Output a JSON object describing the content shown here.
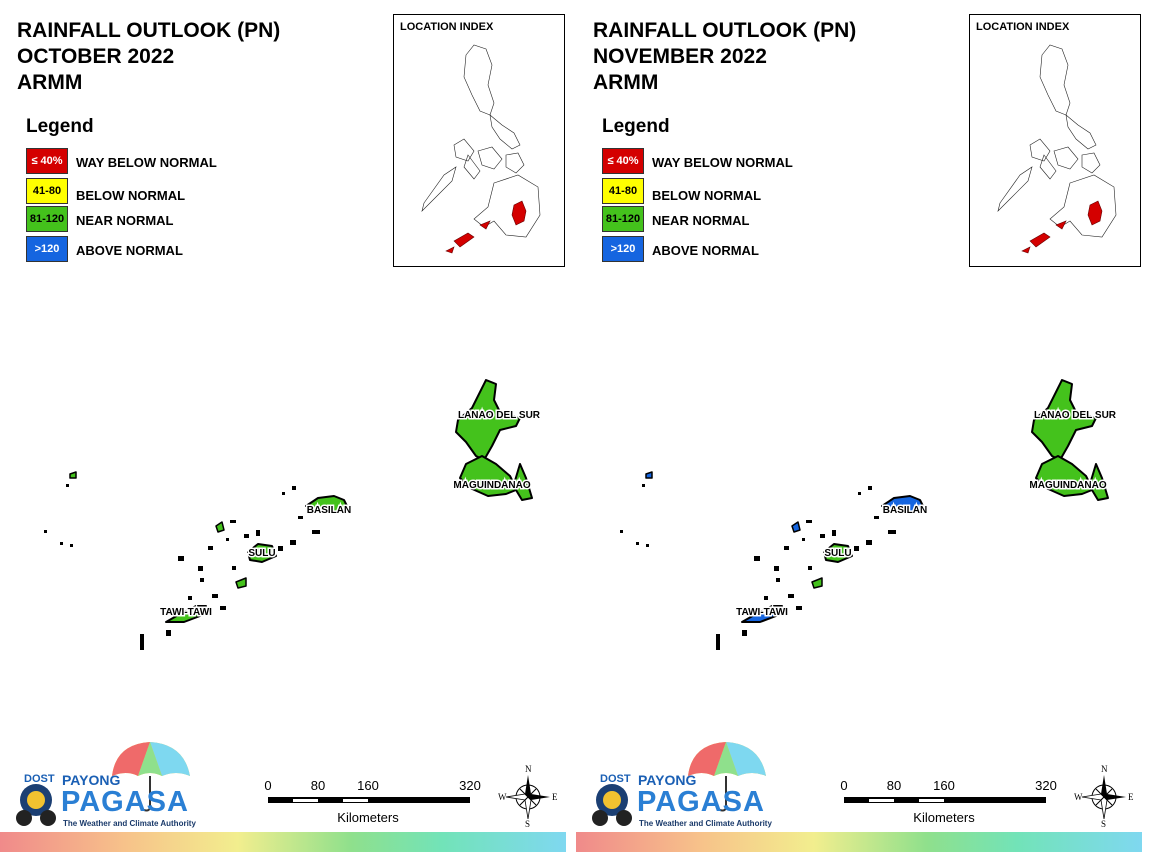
{
  "panels": [
    {
      "title_line1": "RAINFALL OUTLOOK (PN)",
      "title_line2": "OCTOBER 2022",
      "title_line3": "ARMM",
      "legend_title": "Legend",
      "legend": [
        {
          "swatch": "≤ 40%",
          "label": "WAY BELOW NORMAL",
          "color": "#d40000",
          "text_color": "#ffffff"
        },
        {
          "swatch": "41-80",
          "label": "BELOW NORMAL",
          "color": "#ffff00",
          "text_color": "#000000"
        },
        {
          "swatch": "81-120",
          "label": "NEAR NORMAL",
          "color": "#44c21c",
          "text_color": "#000000"
        },
        {
          "swatch": ">120",
          "label": "ABOVE NORMAL",
          "color": "#1565e0",
          "text_color": "#ffffff"
        }
      ],
      "index_title": "LOCATION INDEX",
      "regions": [
        {
          "name": "LANAO DEL SUR",
          "category": "81-120"
        },
        {
          "name": "MAGUINDANAO",
          "category": "81-120"
        },
        {
          "name": "BASILAN",
          "category": "81-120"
        },
        {
          "name": "SULU",
          "category": "81-120"
        },
        {
          "name": "TAWI-TAWI",
          "category": "81-120"
        }
      ],
      "scale": {
        "ticks": [
          "0",
          "80",
          "160",
          "320"
        ],
        "units": "Kilometers"
      },
      "compass": {
        "n": "N",
        "s": "S",
        "e": "E",
        "w": "W"
      },
      "logo": {
        "dost": "DOST",
        "payong": "PAYONG",
        "pagasa": "PAGASA",
        "tagline": "The Weather and Climate Authority"
      }
    },
    {
      "title_line1": "RAINFALL OUTLOOK (PN)",
      "title_line2": "NOVEMBER 2022",
      "title_line3": "ARMM",
      "legend_title": "Legend",
      "legend": [
        {
          "swatch": "≤ 40%",
          "label": "WAY BELOW NORMAL",
          "color": "#d40000",
          "text_color": "#ffffff"
        },
        {
          "swatch": "41-80",
          "label": "BELOW NORMAL",
          "color": "#ffff00",
          "text_color": "#000000"
        },
        {
          "swatch": "81-120",
          "label": "NEAR NORMAL",
          "color": "#44c21c",
          "text_color": "#000000"
        },
        {
          "swatch": ">120",
          "label": "ABOVE NORMAL",
          "color": "#1565e0",
          "text_color": "#ffffff"
        }
      ],
      "index_title": "LOCATION INDEX",
      "regions": [
        {
          "name": "LANAO DEL SUR",
          "category": "81-120"
        },
        {
          "name": "MAGUINDANAO",
          "category": "81-120"
        },
        {
          "name": "BASILAN",
          "category": ">120"
        },
        {
          "name": "SULU",
          "category": "81-120"
        },
        {
          "name": "TAWI-TAWI",
          "category": ">120"
        }
      ],
      "scale": {
        "ticks": [
          "0",
          "80",
          "160",
          "320"
        ],
        "units": "Kilometers"
      },
      "compass": {
        "n": "N",
        "s": "S",
        "e": "E",
        "w": "W"
      },
      "logo": {
        "dost": "DOST",
        "payong": "PAYONG",
        "pagasa": "PAGASA",
        "tagline": "The Weather and Climate Authority"
      }
    }
  ]
}
